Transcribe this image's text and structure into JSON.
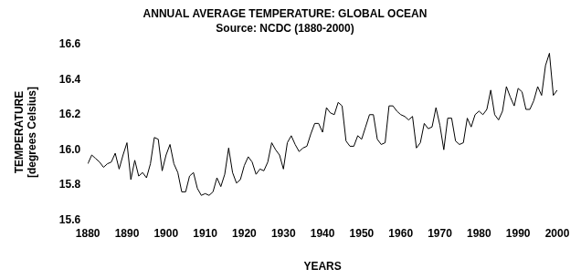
{
  "chart_data": {
    "type": "line",
    "title": "ANNUAL AVERAGE TEMPERATURE: GLOBAL OCEAN",
    "subtitle": "Source: NCDC (1880-2000)",
    "xlabel": "YEARS",
    "ylabel": [
      "TEMPERATURE",
      "[degrees Celsius]"
    ],
    "x": [
      1880,
      1881,
      1882,
      1883,
      1884,
      1885,
      1886,
      1887,
      1888,
      1889,
      1890,
      1891,
      1892,
      1893,
      1894,
      1895,
      1896,
      1897,
      1898,
      1899,
      1900,
      1901,
      1902,
      1903,
      1904,
      1905,
      1906,
      1907,
      1908,
      1909,
      1910,
      1911,
      1912,
      1913,
      1914,
      1915,
      1916,
      1917,
      1918,
      1919,
      1920,
      1921,
      1922,
      1923,
      1924,
      1925,
      1926,
      1927,
      1928,
      1929,
      1930,
      1931,
      1932,
      1933,
      1934,
      1935,
      1936,
      1937,
      1938,
      1939,
      1940,
      1941,
      1942,
      1943,
      1944,
      1945,
      1946,
      1947,
      1948,
      1949,
      1950,
      1951,
      1952,
      1953,
      1954,
      1955,
      1956,
      1957,
      1958,
      1959,
      1960,
      1961,
      1962,
      1963,
      1964,
      1965,
      1966,
      1967,
      1968,
      1969,
      1970,
      1971,
      1972,
      1973,
      1974,
      1975,
      1976,
      1977,
      1978,
      1979,
      1980,
      1981,
      1982,
      1983,
      1984,
      1985,
      1986,
      1987,
      1988,
      1989,
      1990,
      1991,
      1992,
      1993,
      1994,
      1995,
      1996,
      1997,
      1998,
      1999,
      2000
    ],
    "values": [
      15.92,
      15.97,
      15.95,
      15.93,
      15.9,
      15.92,
      15.93,
      15.98,
      15.89,
      15.97,
      16.04,
      15.83,
      15.94,
      15.85,
      15.87,
      15.84,
      15.92,
      16.07,
      16.06,
      15.88,
      15.97,
      16.03,
      15.92,
      15.87,
      15.76,
      15.76,
      15.85,
      15.87,
      15.78,
      15.74,
      15.75,
      15.74,
      15.76,
      15.84,
      15.79,
      15.86,
      16.01,
      15.87,
      15.81,
      15.83,
      15.91,
      15.96,
      15.93,
      15.86,
      15.89,
      15.88,
      15.93,
      16.04,
      16.0,
      15.97,
      15.89,
      16.04,
      16.08,
      16.03,
      15.99,
      16.01,
      16.02,
      16.09,
      16.15,
      16.15,
      16.1,
      16.24,
      16.21,
      16.2,
      16.27,
      16.25,
      16.05,
      16.02,
      16.02,
      16.08,
      16.06,
      16.13,
      16.2,
      16.2,
      16.06,
      16.03,
      16.04,
      16.25,
      16.25,
      16.22,
      16.2,
      16.19,
      16.17,
      16.19,
      16.01,
      16.04,
      16.15,
      16.12,
      16.13,
      16.24,
      16.14,
      16.0,
      16.18,
      16.18,
      16.05,
      16.03,
      16.04,
      16.18,
      16.13,
      16.2,
      16.22,
      16.2,
      16.23,
      16.34,
      16.2,
      16.17,
      16.22,
      16.36,
      16.3,
      16.25,
      16.35,
      16.33,
      16.23,
      16.23,
      16.28,
      16.36,
      16.31,
      16.48,
      16.55,
      16.31,
      16.34
    ],
    "color": "#000000",
    "line_style": "solid",
    "xlim": [
      1880,
      2000
    ],
    "xticks": [
      1880,
      1890,
      1900,
      1910,
      1920,
      1930,
      1940,
      1950,
      1960,
      1970,
      1980,
      1990,
      2000
    ],
    "ylim": [
      15.6,
      16.6
    ],
    "yticks": [
      15.6,
      15.8,
      {
        "value": 16,
        "label": "16.0"
      },
      16.2,
      16.4,
      16.6
    ],
    "grid": false
  }
}
